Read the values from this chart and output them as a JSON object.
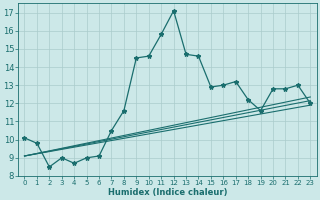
{
  "xlabel": "Humidex (Indice chaleur)",
  "bg_color": "#cce8e8",
  "grid_color": "#aacccc",
  "line_color": "#1a6e6e",
  "xlim": [
    -0.5,
    23.5
  ],
  "ylim": [
    8,
    17.5
  ],
  "xticks": [
    0,
    1,
    2,
    3,
    4,
    5,
    6,
    7,
    8,
    9,
    10,
    11,
    12,
    13,
    14,
    15,
    16,
    17,
    18,
    19,
    20,
    21,
    22,
    23
  ],
  "yticks": [
    8,
    9,
    10,
    11,
    12,
    13,
    14,
    15,
    16,
    17
  ],
  "main_line_x": [
    0,
    1,
    2,
    3,
    4,
    5,
    6,
    7,
    8,
    9,
    10,
    11,
    12,
    13,
    14,
    15,
    16,
    17,
    18,
    19,
    20,
    21,
    22,
    23
  ],
  "main_line_y": [
    10.1,
    9.8,
    8.5,
    9.0,
    8.7,
    9.0,
    9.1,
    10.5,
    11.6,
    14.5,
    14.6,
    15.8,
    17.1,
    14.7,
    14.6,
    12.9,
    13.0,
    13.2,
    12.2,
    11.6,
    12.8,
    12.8,
    13.0,
    12.0
  ],
  "line2_x": [
    0,
    23
  ],
  "line2_y": [
    9.1,
    11.9
  ],
  "line3_x": [
    0,
    23
  ],
  "line3_y": [
    9.1,
    12.15
  ],
  "line4_x": [
    0,
    23
  ],
  "line4_y": [
    9.1,
    12.35
  ]
}
